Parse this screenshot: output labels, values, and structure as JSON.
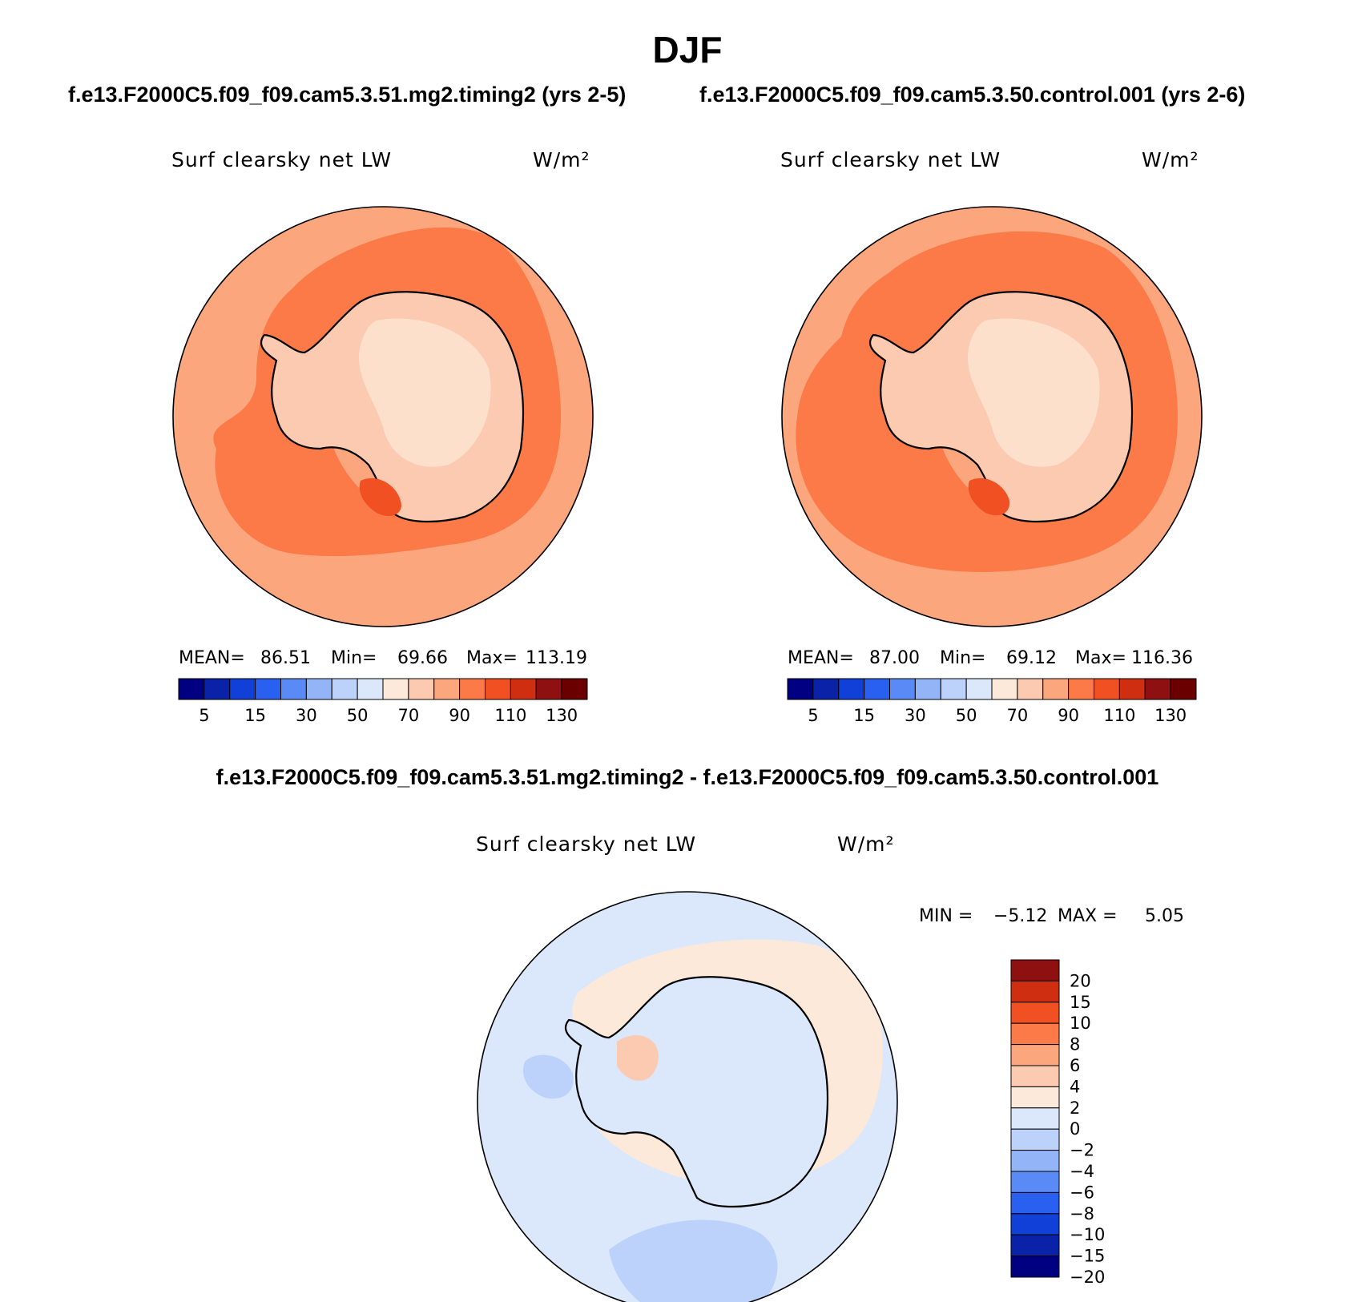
{
  "title": "DJF",
  "case_labels": {
    "left": "f.e13.F2000C5.f09_f09.cam5.3.51.mg2.timing2 (yrs 2-5)",
    "right": "f.e13.F2000C5.f09_f09.cam5.3.50.control.001 (yrs 2-6)",
    "diff": "f.e13.F2000C5.f09_f09.cam5.3.51.mg2.timing2 - f.e13.F2000C5.f09_f09.cam5.3.50.control.001"
  },
  "colors": {
    "abs_scale": [
      "#000080",
      "#0a22a8",
      "#1040d8",
      "#2a60f0",
      "#5a8af5",
      "#93b5f7",
      "#bcd2fa",
      "#dbe8fc",
      "#fde9d9",
      "#fccab0",
      "#fca67e",
      "#fc7a48",
      "#f05022",
      "#cf2e10",
      "#8e1010",
      "#6a0000"
    ],
    "diff_scale": [
      "#000080",
      "#0a22a8",
      "#1040d8",
      "#2a60f0",
      "#5a8af5",
      "#93b5f7",
      "#bcd2fa",
      "#dbe8fc",
      "#fde9d9",
      "#fccab0",
      "#fca67e",
      "#fc7a48",
      "#f05022",
      "#cf2e10",
      "#8e1010"
    ],
    "coast": "#000000"
  },
  "chart_data": [
    {
      "type": "heatmap",
      "projection": "south polar stereographic",
      "title": "Surf clearsky net LW",
      "units": "W/m²",
      "case": "f.e13.F2000C5.f09_f09.cam5.3.51.mg2.timing2 (yrs 2-5)",
      "stats": {
        "mean_label": "MEAN=",
        "mean": "86.51",
        "min_label": "Min=",
        "min": "69.66",
        "max_label": "Max=",
        "max": "113.19"
      },
      "colorbar_ticks": [
        "5",
        "15",
        "30",
        "50",
        "70",
        "90",
        "110",
        "130"
      ],
      "colorbar_levels": 16
    },
    {
      "type": "heatmap",
      "projection": "south polar stereographic",
      "title": "Surf clearsky net LW",
      "units": "W/m²",
      "case": "f.e13.F2000C5.f09_f09.cam5.3.50.control.001 (yrs 2-6)",
      "stats": {
        "mean_label": "MEAN=",
        "mean": "87.00",
        "min_label": "Min=",
        "min": "69.12",
        "max_label": "Max=",
        "max": "116.36"
      },
      "colorbar_ticks": [
        "5",
        "15",
        "30",
        "50",
        "70",
        "90",
        "110",
        "130"
      ],
      "colorbar_levels": 16
    },
    {
      "type": "heatmap",
      "projection": "south polar stereographic",
      "title": "Surf clearsky net LW",
      "units": "W/m²",
      "case": "f.e13.F2000C5.f09_f09.cam5.3.51.mg2.timing2 - f.e13.F2000C5.f09_f09.cam5.3.50.control.001",
      "stats": {
        "min_label": "MIN =",
        "min": "−5.12",
        "max_label": "MAX =",
        "max": "5.05"
      },
      "colorbar_ticks": [
        "20",
        "15",
        "10",
        "8",
        "6",
        "4",
        "2",
        "0",
        "−2",
        "−4",
        "−6",
        "−8",
        "−10",
        "−15",
        "−20"
      ],
      "colorbar_levels": 15
    }
  ]
}
